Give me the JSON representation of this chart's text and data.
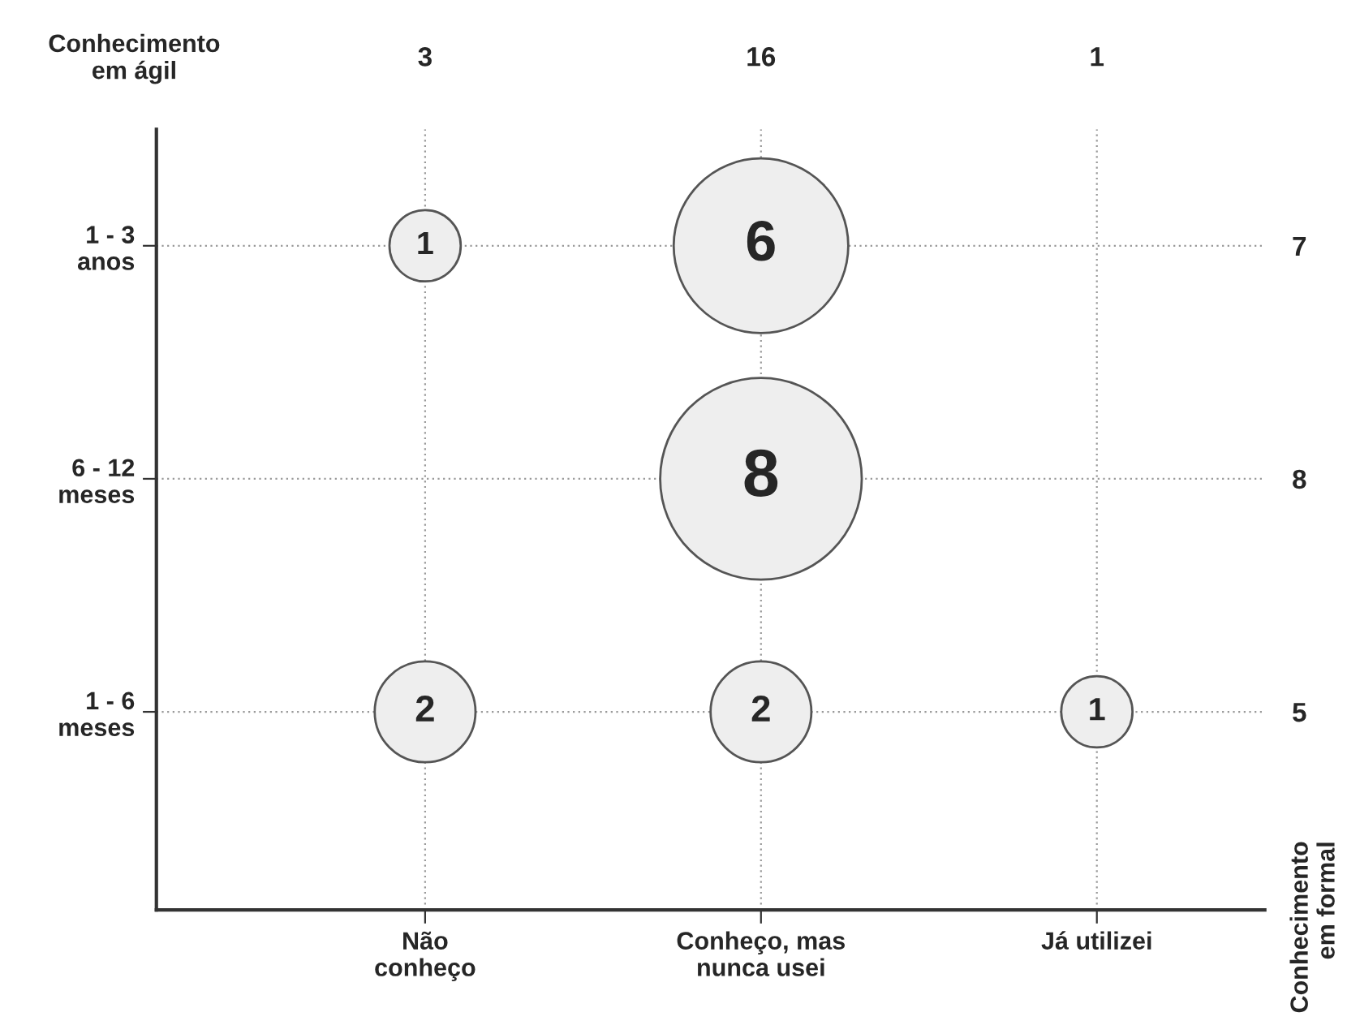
{
  "chart_data": {
    "type": "heatmap",
    "xlabel": "Conhecimento\nem ágil",
    "y2label": "Conhecimento\nem formal",
    "categories": [
      "Não\nconheço",
      "Conheço, mas\nnunca usei",
      "Já utilizei"
    ],
    "totals": [
      "3",
      "16",
      "1"
    ],
    "y_categories": [
      "1 - 3\nanos",
      "6 - 12\nmeses",
      "1 - 6\nmeses"
    ],
    "y2_categories": [
      "7",
      "8",
      "5"
    ],
    "color": "#eeeeee",
    "cells": [
      [
        1,
        6,
        null
      ],
      [
        null,
        8,
        null
      ],
      [
        2,
        2,
        1
      ]
    ],
    "data_labels": true,
    "grid": true
  }
}
